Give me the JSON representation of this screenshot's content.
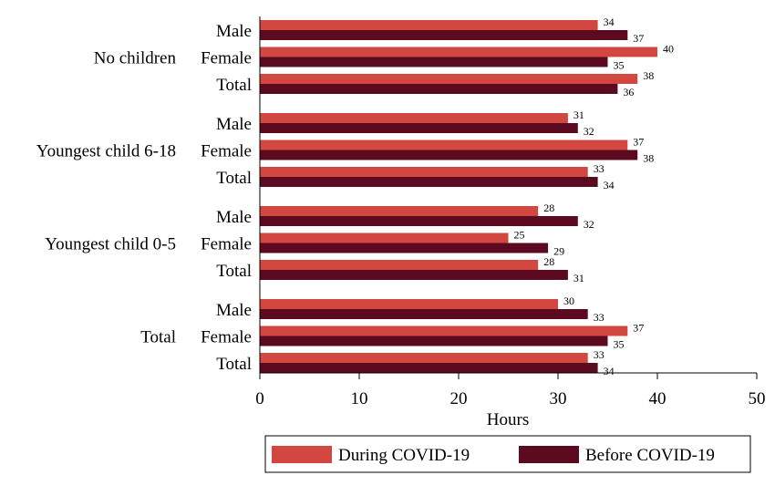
{
  "chart_data": {
    "type": "bar",
    "orientation": "horizontal",
    "xlabel": "Hours",
    "xlim": [
      0,
      50
    ],
    "xticks": [
      0,
      10,
      20,
      30,
      40,
      50
    ],
    "colors": {
      "During COVID-19": "#d2473f",
      "Before COVID-19": "#5c0a20"
    },
    "legend_position": "bottom-right",
    "groups": [
      {
        "label": "No children",
        "categories": [
          {
            "label": "Male",
            "during": 34,
            "before": 37
          },
          {
            "label": "Female",
            "during": 40,
            "before": 35
          },
          {
            "label": "Total",
            "during": 38,
            "before": 36
          }
        ]
      },
      {
        "label": "Youngest child 6-18",
        "categories": [
          {
            "label": "Male",
            "during": 31,
            "before": 32
          },
          {
            "label": "Female",
            "during": 37,
            "before": 38
          },
          {
            "label": "Total",
            "during": 33,
            "before": 34
          }
        ]
      },
      {
        "label": "Youngest child 0-5",
        "categories": [
          {
            "label": "Male",
            "during": 28,
            "before": 32
          },
          {
            "label": "Female",
            "during": 25,
            "before": 29
          },
          {
            "label": "Total",
            "during": 28,
            "before": 31
          }
        ]
      },
      {
        "label": "Total",
        "categories": [
          {
            "label": "Male",
            "during": 30,
            "before": 33
          },
          {
            "label": "Female",
            "during": 37,
            "before": 35
          },
          {
            "label": "Total",
            "during": 33,
            "before": 34
          }
        ]
      }
    ],
    "series": [
      {
        "name": "During COVID-19",
        "key": "during"
      },
      {
        "name": "Before COVID-19",
        "key": "before"
      }
    ]
  }
}
